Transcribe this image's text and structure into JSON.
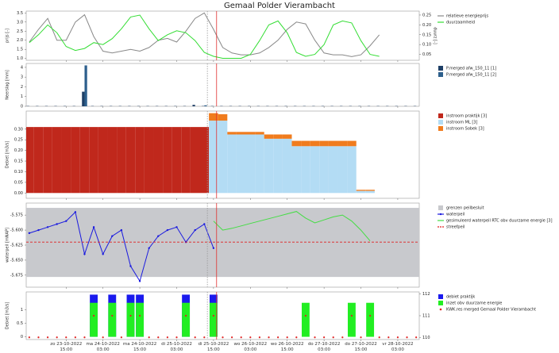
{
  "title": "Gemaal Polder Vierambacht",
  "time_axis": {
    "xlim": [
      "23-10-2022 02:00",
      "28-10-2022 10:00"
    ],
    "xticks": [
      {
        "value": "23-10-2022 15:00",
        "label": "zo 23-10-2022 15:00"
      },
      {
        "value": "24-10-2022 03:00",
        "label": "ma 24-10-2022 03:00"
      },
      {
        "value": "24-10-2022 15:00",
        "label": "ma 24-10-2022 15:00"
      },
      {
        "value": "25-10-2022 03:00",
        "label": "di 25-10-2022 03:00"
      },
      {
        "value": "25-10-2022 15:00",
        "label": "di 25-10-2022 15:00"
      },
      {
        "value": "26-10-2022 03:00",
        "label": "wo 26-10-2022 03:00"
      },
      {
        "value": "26-10-2022 15:00",
        "label": "wo 26-10-2022 15:00"
      },
      {
        "value": "27-10-2022 03:00",
        "label": "do 27-10-2022 03:00"
      },
      {
        "value": "27-10-2022 15:00",
        "label": "do 27-10-2022 15:00"
      },
      {
        "value": "28-10-2022 03:00",
        "label": "vr 28-10-2022 03:00"
      }
    ],
    "x": [
      "23-10-2022 03:00",
      "23-10-2022 06:00",
      "23-10-2022 09:00",
      "23-10-2022 12:00",
      "23-10-2022 15:00",
      "23-10-2022 18:00",
      "23-10-2022 21:00",
      "24-10-2022 00:00",
      "24-10-2022 03:00",
      "24-10-2022 06:00",
      "24-10-2022 09:00",
      "24-10-2022 12:00",
      "24-10-2022 15:00",
      "24-10-2022 18:00",
      "24-10-2022 21:00",
      "25-10-2022 00:00",
      "25-10-2022 03:00",
      "25-10-2022 06:00",
      "25-10-2022 09:00",
      "25-10-2022 12:00",
      "25-10-2022 15:00",
      "25-10-2022 18:00",
      "25-10-2022 21:00",
      "26-10-2022 00:00",
      "26-10-2022 03:00",
      "26-10-2022 06:00",
      "26-10-2022 09:00",
      "26-10-2022 12:00",
      "26-10-2022 15:00",
      "26-10-2022 18:00",
      "26-10-2022 21:00",
      "27-10-2022 00:00",
      "27-10-2022 03:00",
      "27-10-2022 06:00",
      "27-10-2022 09:00",
      "27-10-2022 12:00",
      "27-10-2022 15:00",
      "27-10-2022 18:00",
      "27-10-2022 21:00",
      "28-10-2022 00:00",
      "28-10-2022 03:00",
      "28-10-2022 06:00",
      "28-10-2022 09:00"
    ]
  },
  "vlines": [
    {
      "x": "25-10-2022 13:00",
      "color": "#999999",
      "dash": true
    },
    {
      "x": "25-10-2022 16:00",
      "color": "#e03030",
      "dash": false
    }
  ],
  "chart_data": [
    {
      "type": "line",
      "ylabel": "prijs [-]",
      "y2label": "duurz [-]",
      "ylim": [
        0.9,
        3.6
      ],
      "yticks": [
        {
          "value": 1,
          "label": "1.0"
        },
        1.5,
        {
          "value": 2,
          "label": "2.0"
        },
        2.5,
        {
          "value": 3,
          "label": "3.0"
        },
        3.5
      ],
      "y2lim": [
        0.02,
        0.27
      ],
      "y2ticks": [
        0.05,
        {
          "value": 0.1,
          "label": "0.10"
        },
        0.15,
        {
          "value": 0.2,
          "label": "0.20"
        },
        0.25
      ],
      "series": [
        {
          "name": "relatieve energieprijs",
          "color": "#888888",
          "values": [
            1.9,
            2.6,
            3.2,
            2.0,
            2.0,
            3.0,
            3.4,
            2.2,
            1.4,
            1.3,
            1.4,
            1.5,
            1.4,
            1.6,
            2.0,
            2.1,
            1.9,
            2.5,
            3.2,
            3.5,
            2.6,
            1.6,
            1.3,
            1.2,
            1.2,
            1.3,
            1.6,
            2.0,
            2.6,
            3.0,
            2.9,
            2.0,
            1.3,
            1.2,
            1.2,
            1.1,
            1.2,
            1.7,
            2.3,
            null,
            null,
            null,
            null
          ]
        },
        {
          "name": "duurzaamheid",
          "color": "#33dd33",
          "axis": "y2",
          "values": [
            0.11,
            0.15,
            0.2,
            0.16,
            0.09,
            0.07,
            0.08,
            0.11,
            0.1,
            0.13,
            0.18,
            0.24,
            0.25,
            0.18,
            0.12,
            0.15,
            0.17,
            0.16,
            0.12,
            0.06,
            0.04,
            0.03,
            0.03,
            0.03,
            0.05,
            0.12,
            0.2,
            0.22,
            0.16,
            0.06,
            0.04,
            0.05,
            0.1,
            0.2,
            0.22,
            0.21,
            0.12,
            0.05,
            0.04,
            null,
            null,
            null,
            null
          ]
        }
      ]
    },
    {
      "type": "bar",
      "barmode": "group",
      "ylabel": "Neerslag [mm]",
      "ylim": [
        0,
        4.4
      ],
      "yticks": [
        0,
        1,
        2,
        3,
        4
      ],
      "series": [
        {
          "name": "P.merged afw_150_11 [1]",
          "color": "#1e3f66",
          "values": [
            0.03,
            0.03,
            0.03,
            0.03,
            0.03,
            0.03,
            1.5,
            0.03,
            0.03,
            0.03,
            0.03,
            0.03,
            0.03,
            0.03,
            0.03,
            0.03,
            0.03,
            0.03,
            0.15,
            0.03,
            0.03,
            0.03,
            0.03,
            0.03,
            0.03,
            0.03,
            0.03,
            0.03,
            0.03,
            0.03,
            0.03,
            0.03,
            0.03,
            0.03,
            0.03,
            0.03,
            0.03,
            0.03,
            0.03,
            0.03,
            0.03,
            0.03,
            0.03
          ]
        },
        {
          "name": "P.merged afw_150_11 [2]",
          "color": "#2d5f8c",
          "values": [
            null,
            null,
            null,
            null,
            null,
            null,
            4.2,
            null,
            null,
            null,
            null,
            null,
            null,
            null,
            null,
            null,
            null,
            null,
            null,
            0.1,
            null,
            null,
            null,
            null,
            null,
            null,
            null,
            null,
            null,
            null,
            null,
            null,
            null,
            null,
            null,
            null,
            null,
            null,
            null,
            null,
            null,
            null,
            null
          ]
        }
      ]
    },
    {
      "type": "bar",
      "barmode": "stack",
      "ylabel": "Debiet [m3/s]",
      "ylim": [
        -0.025,
        0.385
      ],
      "yticks": [
        {
          "value": 0,
          "label": "0.00"
        },
        0.05,
        {
          "value": 0.1,
          "label": "0.10"
        },
        0.15,
        {
          "value": 0.2,
          "label": "0.20"
        },
        0.25,
        {
          "value": 0.3,
          "label": "0.30"
        }
      ],
      "series": [
        {
          "name": "instroom praktijk [3]",
          "color": "#c0281c",
          "values": [
            0.31,
            0.31,
            0.31,
            0.31,
            0.31,
            0.31,
            0.31,
            0.31,
            0.31,
            0.31,
            0.31,
            0.31,
            0.31,
            0.31,
            0.31,
            0.31,
            0.31,
            0.31,
            0.31,
            0.31,
            null,
            null,
            null,
            null,
            null,
            null,
            null,
            null,
            null,
            null,
            null,
            null,
            null,
            null,
            null,
            null,
            null,
            null,
            null,
            null,
            null,
            null,
            null
          ]
        },
        {
          "name": "instroom ML [3]",
          "color": "#b3dcf4",
          "values": [
            null,
            null,
            null,
            null,
            null,
            null,
            null,
            null,
            null,
            null,
            null,
            null,
            null,
            null,
            null,
            null,
            null,
            null,
            null,
            null,
            0.34,
            0.34,
            0.275,
            0.275,
            0.275,
            0.275,
            0.255,
            0.255,
            0.255,
            0.22,
            0.22,
            0.22,
            0.22,
            0.22,
            0.22,
            0.22,
            0.01,
            0.01,
            null,
            null,
            null,
            null,
            null
          ]
        },
        {
          "name": "instroom Sobek [3]",
          "color": "#f07c1e",
          "values": [
            null,
            null,
            null,
            null,
            null,
            null,
            null,
            null,
            null,
            null,
            null,
            null,
            null,
            null,
            null,
            null,
            null,
            null,
            null,
            null,
            0.035,
            0.03,
            0.012,
            0.012,
            0.012,
            0.012,
            0.02,
            0.02,
            0.02,
            0.025,
            0.025,
            0.025,
            0.025,
            0.025,
            0.025,
            0.025,
            0.005,
            0.005,
            null,
            null,
            null,
            null,
            null
          ]
        }
      ]
    },
    {
      "type": "line",
      "ylabel": "waterpeil [mNAP]",
      "ylim": [
        -5.695,
        -5.555
      ],
      "yticks": [
        -5.575,
        {
          "value": -5.6,
          "label": "-5.600"
        },
        -5.625,
        {
          "value": -5.65,
          "label": "-5.650"
        },
        -5.675
      ],
      "series": [
        {
          "name": "grenzen peilbesluit",
          "type": "band",
          "color": "#c8c9cd",
          "range": [
            -5.678,
            -5.563
          ]
        },
        {
          "name": "waterpeil",
          "color": "#1a1adf",
          "marker": true,
          "values": [
            -5.605,
            -5.6,
            -5.595,
            -5.59,
            -5.585,
            -5.57,
            -5.64,
            -5.595,
            -5.64,
            -5.61,
            -5.6,
            -5.66,
            -5.685,
            -5.63,
            -5.61,
            -5.6,
            -5.595,
            -5.62,
            -5.6,
            -5.59,
            -5.63,
            null,
            null,
            null,
            null,
            null,
            null,
            null,
            null,
            null,
            null,
            null,
            null,
            null,
            null,
            null,
            null,
            null,
            null,
            null,
            null,
            null,
            null
          ]
        },
        {
          "name": "gesimuleerd waterpeil RTC obv duurzame energie [3]",
          "color": "#44dd44",
          "values": [
            null,
            null,
            null,
            null,
            null,
            null,
            null,
            null,
            null,
            null,
            null,
            null,
            null,
            null,
            null,
            null,
            null,
            null,
            null,
            null,
            -5.585,
            -5.6,
            -5.597,
            -5.593,
            -5.589,
            -5.585,
            -5.581,
            -5.577,
            -5.573,
            -5.569,
            -5.58,
            -5.588,
            -5.583,
            -5.578,
            -5.575,
            -5.585,
            -5.6,
            -5.618,
            null,
            null,
            null,
            null,
            null
          ]
        },
        {
          "name": "streefpeil",
          "type": "hline",
          "color": "#e02020",
          "value": -5.62
        }
      ]
    },
    {
      "type": "bar",
      "barmode": "overlay",
      "ylabel": "Debiet [m3/s]",
      "ylim": [
        -0.1,
        1.65
      ],
      "yticks": [
        0,
        0.5,
        1
      ],
      "y2lim": [
        109.9,
        112.1
      ],
      "y2ticks": [
        110,
        111,
        112
      ],
      "series": [
        {
          "name": "debiet praktijk",
          "color": "#1a1aee",
          "values": [
            null,
            null,
            null,
            null,
            null,
            null,
            null,
            1.55,
            null,
            1.55,
            null,
            1.55,
            1.55,
            null,
            null,
            null,
            null,
            1.55,
            null,
            null,
            1.55,
            null,
            null,
            null,
            null,
            null,
            null,
            null,
            null,
            null,
            null,
            null,
            null,
            null,
            null,
            null,
            null,
            null,
            null,
            null,
            null,
            null,
            null
          ]
        },
        {
          "name": "inzet obv duurzame energie",
          "color": "#22ee22",
          "values": [
            null,
            null,
            null,
            null,
            null,
            null,
            null,
            1.25,
            null,
            1.25,
            null,
            1.25,
            1.25,
            null,
            null,
            null,
            null,
            1.25,
            null,
            null,
            1.25,
            null,
            null,
            null,
            null,
            null,
            null,
            null,
            null,
            null,
            1.25,
            null,
            null,
            null,
            null,
            1.25,
            null,
            1.25,
            null,
            null,
            null,
            null,
            null
          ]
        },
        {
          "name": "KWK.res merged Gemaal Polder Vierambacht",
          "type": "scatter",
          "axis": "y2",
          "color": "#e02020",
          "values": [
            110,
            110,
            110,
            110,
            110,
            110,
            110,
            111,
            110,
            111,
            110,
            111,
            111,
            110,
            110,
            110,
            110,
            111,
            110,
            110,
            111,
            110,
            110,
            110,
            110,
            110,
            110,
            110,
            110,
            110,
            111,
            110,
            110,
            110,
            110,
            111,
            110,
            111,
            110,
            110,
            110,
            110,
            110
          ]
        }
      ]
    }
  ]
}
